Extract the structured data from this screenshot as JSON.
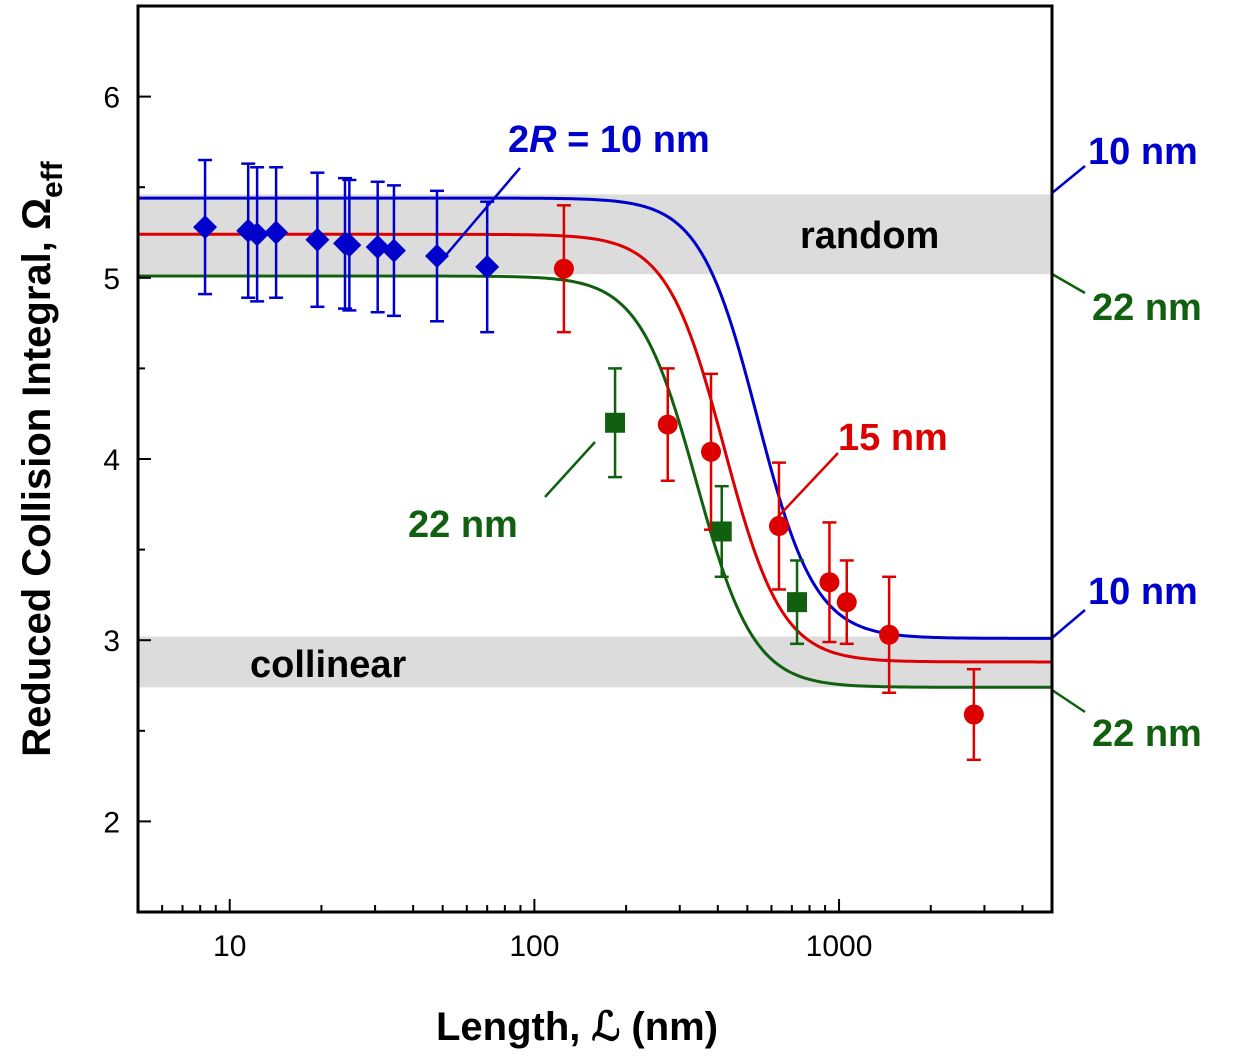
{
  "chart_data": {
    "type": "scatter",
    "xscale": "log",
    "xlim": [
      5,
      5000
    ],
    "ylim": [
      1.5,
      6.5
    ],
    "xlabel": "Length, ℒ (nm)",
    "ylabel_main": "Reduced Collision Integral, Ω",
    "ylabel_sub": "eff",
    "grid": false,
    "legend": "none",
    "x_ticks": [
      10,
      100,
      1000
    ],
    "y_ticks": [
      2,
      3,
      4,
      5,
      6
    ],
    "colors": {
      "blue": "#0000cc",
      "red": "#dd0000",
      "green": "#106010",
      "band": "#dcdcdc"
    },
    "bands": [
      {
        "label": "random",
        "y_range": [
          5.02,
          5.46
        ]
      },
      {
        "label": "collinear",
        "y_range": [
          2.74,
          3.02
        ]
      }
    ],
    "curves": [
      {
        "color": "blue",
        "low": 3.01,
        "high": 5.44,
        "midpoint": 540,
        "steepness": 2.3
      },
      {
        "color": "red",
        "low": 2.88,
        "high": 5.24,
        "midpoint": 420,
        "steepness": 2.3
      },
      {
        "color": "green",
        "low": 2.74,
        "high": 5.01,
        "midpoint": 340,
        "steepness": 2.3
      }
    ],
    "series": [
      {
        "color": "blue",
        "marker": "diamond",
        "x": [
          8.3,
          11.5,
          12.3,
          14.2,
          19.4,
          23.9,
          24.7,
          30.6,
          34.6,
          47.9,
          70
        ],
        "y": [
          5.28,
          5.26,
          5.24,
          5.25,
          5.21,
          5.19,
          5.18,
          5.17,
          5.15,
          5.12,
          5.06
        ],
        "err": [
          0.37,
          0.37,
          0.37,
          0.36,
          0.37,
          0.36,
          0.36,
          0.36,
          0.36,
          0.36,
          0.36
        ]
      },
      {
        "color": "red",
        "marker": "circle",
        "x": [
          125,
          274,
          380,
          635,
          930,
          1060,
          1460,
          2770
        ],
        "y": [
          5.05,
          4.19,
          4.04,
          3.63,
          3.32,
          3.21,
          3.03,
          2.59
        ],
        "err": [
          0.35,
          0.31,
          0.43,
          0.35,
          0.33,
          0.23,
          0.32,
          0.25
        ]
      },
      {
        "color": "green",
        "marker": "square",
        "x": [
          184,
          412,
          728
        ],
        "y": [
          4.2,
          3.6,
          3.21
        ],
        "err": [
          0.3,
          0.25,
          0.23
        ]
      }
    ],
    "annotations": {
      "main_blue_prefix": "2",
      "main_blue_italic": "R",
      "main_blue_rest": " = 10 nm",
      "mid_red": "15 nm",
      "mid_green": "22 nm",
      "right_top_blue": "10 nm",
      "right_top_green": "22 nm",
      "right_bottom_blue": "10 nm",
      "right_bottom_green": "22 nm"
    }
  }
}
